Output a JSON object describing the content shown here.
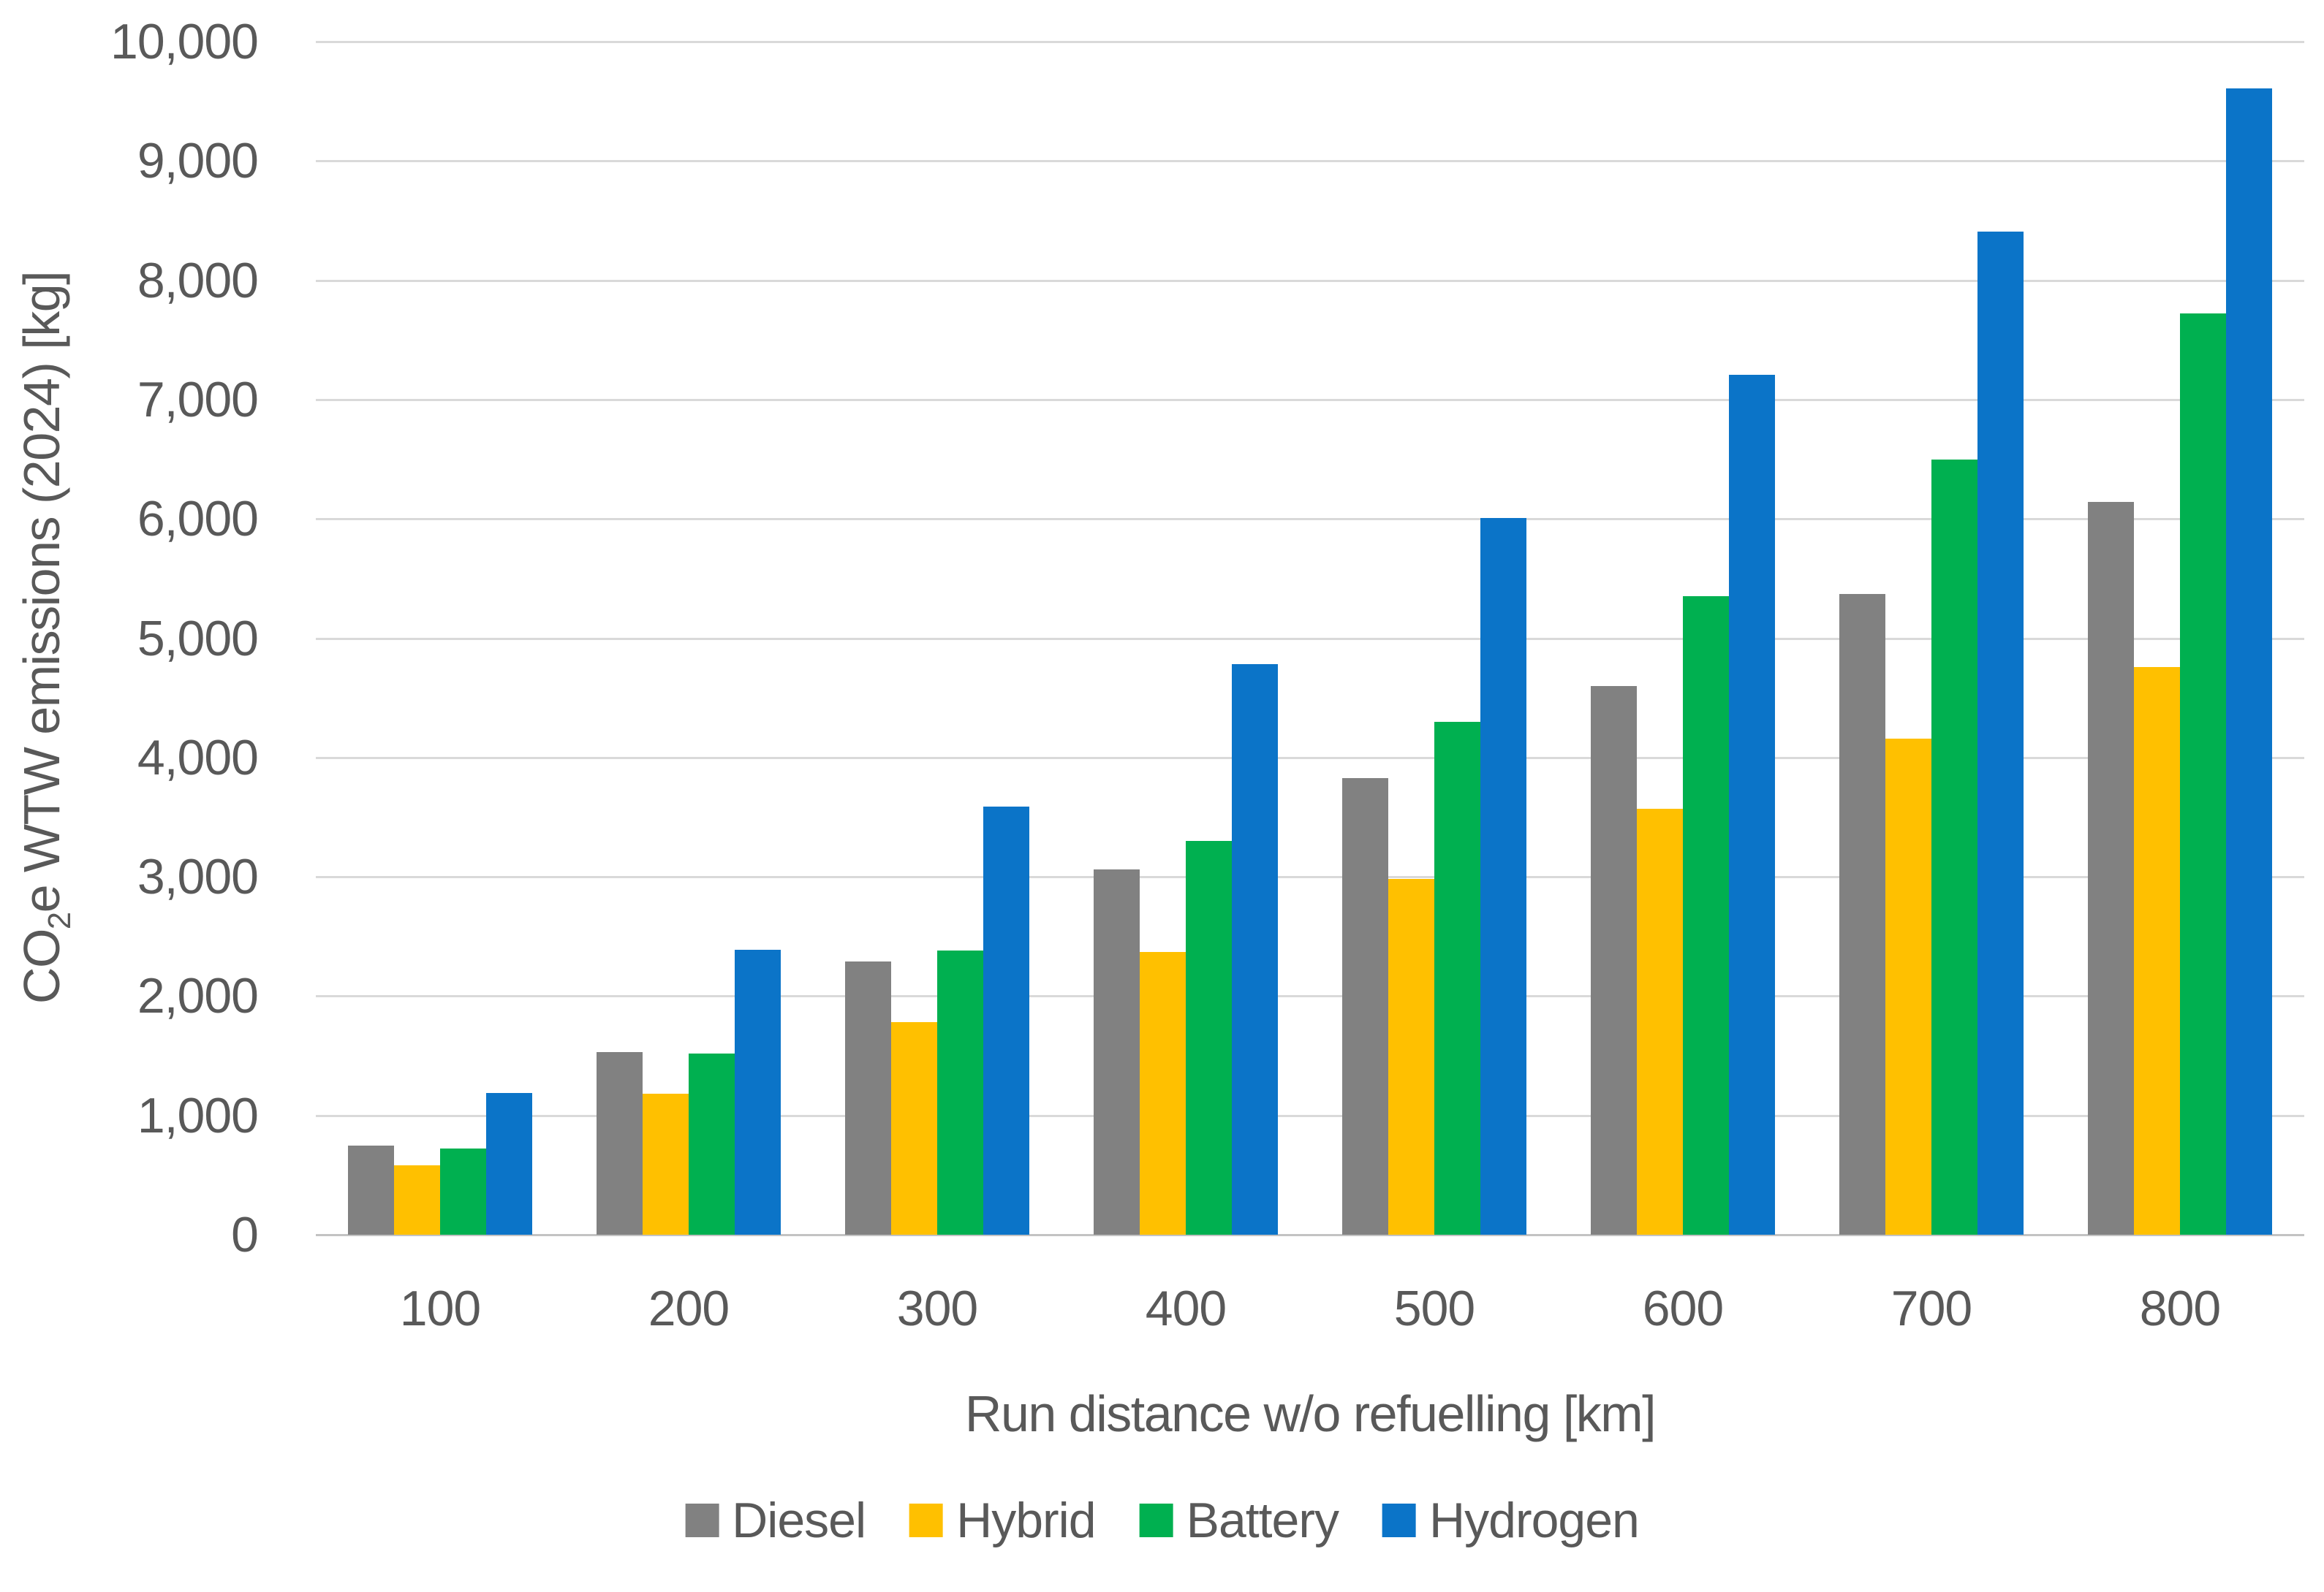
{
  "y_axis": {
    "title_prefix": "CO",
    "title_sub": "2",
    "title_suffix": "e WTW emissions (2024) [kg]",
    "ticks": [
      {
        "label": "0",
        "value": 0
      },
      {
        "label": "1,000",
        "value": 1000
      },
      {
        "label": "2,000",
        "value": 2000
      },
      {
        "label": "3,000",
        "value": 3000
      },
      {
        "label": "4,000",
        "value": 4000
      },
      {
        "label": "5,000",
        "value": 5000
      },
      {
        "label": "6,000",
        "value": 6000
      },
      {
        "label": "7,000",
        "value": 7000
      },
      {
        "label": "8,000",
        "value": 8000
      },
      {
        "label": "9,000",
        "value": 9000
      },
      {
        "label": "10,000",
        "value": 10000
      }
    ]
  },
  "x_axis": {
    "title": "Run distance w/o refuelling [km]",
    "categories": [
      "100",
      "200",
      "300",
      "400",
      "500",
      "600",
      "700",
      "800"
    ]
  },
  "chart_data": {
    "type": "bar",
    "title": "",
    "xlabel": "Run distance w/o refuelling [km]",
    "ylabel": "CO2e WTW emissions (2024) [kg]",
    "ylim": [
      0,
      10000
    ],
    "grid": true,
    "legend_position": "bottom",
    "categories": [
      100,
      200,
      300,
      400,
      500,
      600,
      700,
      800
    ],
    "series": [
      {
        "name": "Diesel",
        "color": "#818181",
        "values": [
          750,
          1530,
          2290,
          3060,
          3830,
          4600,
          5370,
          6140
        ]
      },
      {
        "name": "Hybrid",
        "color": "#FFC000",
        "values": [
          580,
          1180,
          1780,
          2370,
          2980,
          3570,
          4160,
          4760
        ]
      },
      {
        "name": "Battery",
        "color": "#00B050",
        "values": [
          720,
          1520,
          2380,
          3300,
          4300,
          5350,
          6500,
          7720
        ]
      },
      {
        "name": "Hydrogen",
        "color": "#0B74C8",
        "values": [
          1190,
          2390,
          3590,
          4780,
          6010,
          7210,
          8410,
          9610
        ]
      }
    ]
  },
  "colors": {
    "text": "#595959",
    "gridline": "#D9D9D9",
    "baseline": "#C3C3C3",
    "background": "#FFFFFF"
  }
}
